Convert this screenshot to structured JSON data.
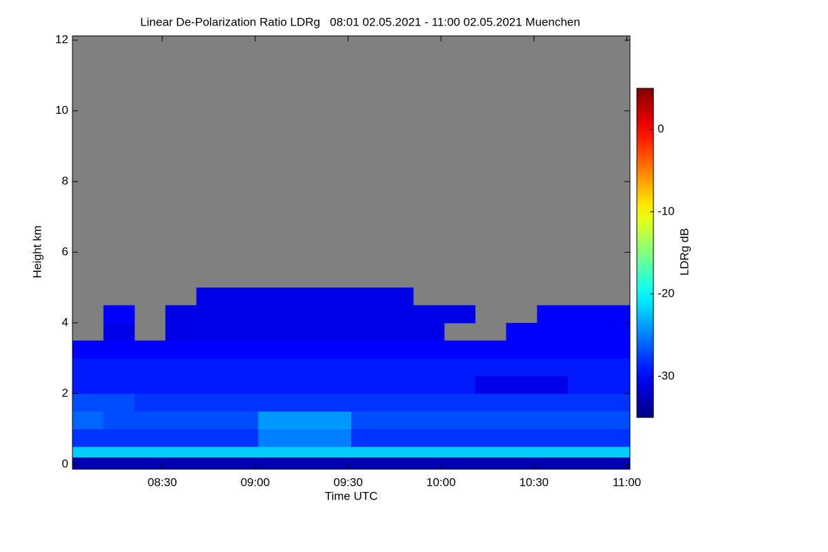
{
  "chart_data": {
    "type": "heatmap",
    "title": "Linear De-Polarization Ratio LDRg   08:01 02.05.2021 - 11:00 02.05.2021 Muenchen",
    "xlabel": "Time UTC",
    "ylabel": "Height km",
    "colorbar_label": "LDRg dB",
    "xlim": [
      481,
      661
    ],
    "ylim": [
      -0.14,
      12.12
    ],
    "xticks": [
      {
        "value": 510,
        "label": "08:30"
      },
      {
        "value": 540,
        "label": "09:00"
      },
      {
        "value": 570,
        "label": "09:30"
      },
      {
        "value": 600,
        "label": "10:00"
      },
      {
        "value": 630,
        "label": "10:30"
      },
      {
        "value": 660,
        "label": "11:00"
      }
    ],
    "yticks": [
      0,
      2,
      4,
      6,
      8,
      10,
      12
    ],
    "clim": [
      -35,
      5
    ],
    "cticks": [
      0,
      -10,
      -20,
      -30
    ],
    "colormap": "jet",
    "nodata_color": "#808080",
    "x_edges": [
      481,
      491,
      501,
      511,
      521,
      531,
      541,
      551,
      561,
      571,
      581,
      591,
      601,
      611,
      621,
      631,
      641,
      651,
      661
    ],
    "y_edges": [
      -0.14,
      0.2,
      0.5,
      1,
      1.5,
      2,
      2.5,
      3,
      3.5,
      4,
      4.5,
      5
    ],
    "z": [
      [
        -33,
        -33,
        -33,
        -33,
        -33,
        -33,
        -33,
        -33,
        -33,
        -33,
        -33,
        -33,
        -33,
        -33,
        -33,
        -33,
        -33,
        -33
      ],
      [
        -22,
        -22,
        -22,
        -22,
        -22,
        -22,
        -22,
        -22,
        -22,
        -22,
        -22,
        -22,
        -22,
        -22,
        -22,
        -22,
        -22,
        -22
      ],
      [
        -28,
        -28,
        -28,
        -28,
        -28,
        -28,
        -25,
        -25,
        -25,
        -28,
        -28,
        -28,
        -28,
        -28,
        -28,
        -28,
        -28,
        -28
      ],
      [
        -26,
        -27,
        -27,
        -27,
        -27,
        -27,
        -24,
        -24,
        -24,
        -27,
        -27,
        -27,
        -27,
        -27,
        -27,
        -27,
        -27,
        -27
      ],
      [
        -27,
        -27,
        -28,
        -28,
        -28,
        -28,
        -28,
        -28,
        -28,
        -28,
        -28,
        -28,
        -28,
        -28,
        -28,
        -28,
        -28,
        -28
      ],
      [
        -29,
        -29,
        -29,
        -29,
        -29,
        -29,
        -29,
        -29,
        -29,
        -29,
        -29,
        -29,
        -29,
        -31,
        -31,
        -31,
        -29,
        -29
      ],
      [
        -29,
        -29,
        -29,
        -29,
        -29,
        -29,
        -29,
        -29,
        -29,
        -29,
        -29,
        -29,
        -29,
        -29,
        -29,
        -29,
        -29,
        -29
      ],
      [
        -30,
        -30,
        -30,
        -30,
        -30,
        -30,
        -30,
        -30,
        -30,
        -30,
        -30,
        -30,
        -30,
        -30,
        -30,
        -30,
        -30,
        -30
      ],
      [
        null,
        -31,
        null,
        -31,
        -31,
        -31,
        -31,
        -31,
        -31,
        -31,
        -31,
        -31,
        null,
        null,
        -30,
        -30,
        -30,
        -30
      ],
      [
        null,
        -30,
        null,
        -31,
        -31,
        -31,
        -31,
        -31,
        -31,
        -31,
        -31,
        -31,
        -31,
        null,
        null,
        -30,
        -30,
        -30
      ],
      [
        null,
        null,
        null,
        null,
        -31,
        -31,
        -31,
        -31,
        -31,
        -31,
        -31,
        null,
        null,
        null,
        null,
        null,
        null,
        null
      ]
    ]
  }
}
